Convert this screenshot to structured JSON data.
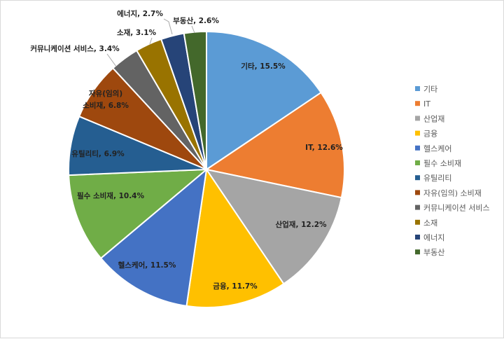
{
  "chart_data": {
    "type": "pie",
    "title": "",
    "legend_position": "right",
    "slices": [
      {
        "label": "기타",
        "value": 15.5,
        "data_label": "기타, 15.5%",
        "color": "#5b9bd5"
      },
      {
        "label": "IT",
        "value": 12.6,
        "data_label": "IT, 12.6%",
        "color": "#ed7d31"
      },
      {
        "label": "산업재",
        "value": 12.2,
        "data_label": "산업재, 12.2%",
        "color": "#a5a5a5"
      },
      {
        "label": "금융",
        "value": 11.7,
        "data_label": "금융, 11.7%",
        "color": "#ffc000"
      },
      {
        "label": "헬스케어",
        "value": 11.5,
        "data_label": "헬스케어, 11.5%",
        "color": "#4472c4"
      },
      {
        "label": "필수 소비재",
        "value": 10.4,
        "data_label": "필수 소비재, 10.4%",
        "color": "#70ad47"
      },
      {
        "label": "유틸리티",
        "value": 6.9,
        "data_label": "유틸리티, 6.9%",
        "color": "#255e91"
      },
      {
        "label": "자유(임의) 소비재",
        "value": 6.8,
        "data_label": "자유(임의)|소비재, 6.8%",
        "color": "#9e480e"
      },
      {
        "label": "커뮤니케이션 서비스",
        "value": 3.4,
        "data_label": "커뮤니케이션 서비스, 3.4%",
        "color": "#636363"
      },
      {
        "label": "소재",
        "value": 3.1,
        "data_label": "소재, 3.1%",
        "color": "#997300"
      },
      {
        "label": "에너지",
        "value": 2.7,
        "data_label": "에너지, 2.7%",
        "color": "#264478"
      },
      {
        "label": "부동산",
        "value": 2.6,
        "data_label": "부동산, 2.6%",
        "color": "#43682b"
      }
    ]
  }
}
